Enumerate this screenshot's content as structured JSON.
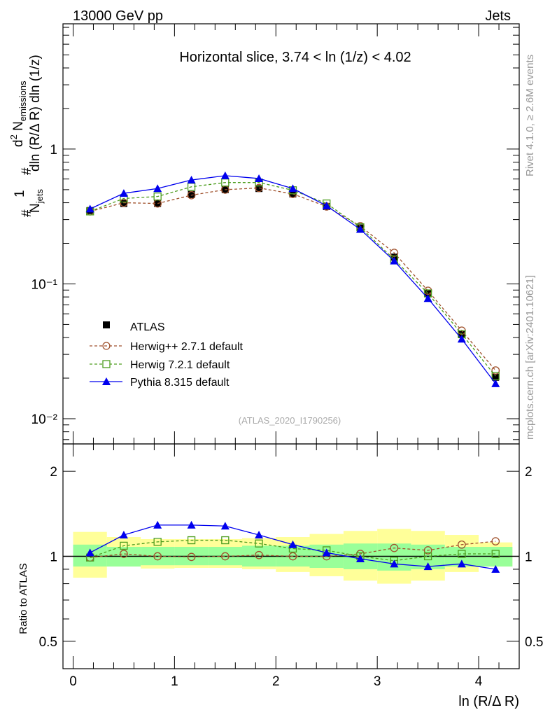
{
  "header": {
    "energy_label": "13000 GeV pp",
    "process_label": "Jets"
  },
  "side": {
    "rivet_label": "Rivet 4.1.0, ≥ 2.6M events",
    "mcplots_label": "mcplots.cern.ch [arXiv:2401.10621]"
  },
  "chart_data": [
    {
      "type": "line",
      "title": "Horizontal slice, 3.74 < ln (1/z) < 4.02",
      "watermark": "(ATLAS_2020_I1790256)",
      "ylabel": "1/N_jets dN_emissions / dln(R/ΔR) dln(1/z)",
      "xlabel": "ln (R/Δ R)",
      "yscale": "log",
      "xlim": [
        -0.1,
        4.4
      ],
      "ylim": [
        0.0065,
        8.5
      ],
      "y_tick_labels": [
        "10⁻²",
        "10⁻¹",
        "1"
      ],
      "legend_position": "middle-left",
      "x": [
        0.167,
        0.5,
        0.833,
        1.167,
        1.5,
        1.833,
        2.167,
        2.5,
        2.833,
        3.167,
        3.5,
        3.833,
        4.167
      ],
      "series": [
        {
          "name": "ATLAS",
          "values": [
            0.35,
            0.395,
            0.395,
            0.46,
            0.5,
            0.51,
            0.465,
            0.375,
            0.26,
            0.158,
            0.085,
            0.042,
            0.0203
          ]
        },
        {
          "name": "Herwig++ 2.7.1 default",
          "values": [
            0.345,
            0.4,
            0.395,
            0.455,
            0.5,
            0.515,
            0.465,
            0.375,
            0.268,
            0.17,
            0.089,
            0.045,
            0.0228
          ]
        },
        {
          "name": "Herwig 7.2.1 default",
          "values": [
            0.345,
            0.43,
            0.445,
            0.525,
            0.565,
            0.565,
            0.495,
            0.395,
            0.263,
            0.152,
            0.085,
            0.0425,
            0.0207
          ]
        },
        {
          "name": "Pythia 8.315 default",
          "values": [
            0.36,
            0.47,
            0.51,
            0.59,
            0.635,
            0.605,
            0.51,
            0.38,
            0.254,
            0.148,
            0.078,
            0.039,
            0.0182
          ]
        }
      ]
    },
    {
      "type": "line",
      "ylabel": "Ratio to ATLAS",
      "xlabel": "ln (R/Δ R)",
      "yscale": "log",
      "xlim": [
        -0.1,
        4.4
      ],
      "ylim": [
        0.4,
        2.5
      ],
      "y_ticks": [
        0.5,
        1,
        2
      ],
      "y_tick_labels": [
        "0.5",
        "1",
        "2"
      ],
      "x_ticks": [
        0,
        1,
        2,
        3,
        4
      ],
      "x_tick_labels": [
        "0",
        "1",
        "2",
        "3",
        "4"
      ],
      "bin_edges": [
        0,
        0.333,
        0.667,
        1.0,
        1.333,
        1.667,
        2.0,
        2.333,
        2.667,
        3.0,
        3.333,
        3.667,
        4.0,
        4.333
      ],
      "band_stat": {
        "low": [
          0.92,
          0.92,
          0.93,
          0.93,
          0.93,
          0.92,
          0.92,
          0.91,
          0.9,
          0.89,
          0.9,
          0.92,
          0.92
        ],
        "high": [
          1.1,
          1.08,
          1.08,
          1.08,
          1.08,
          1.09,
          1.09,
          1.1,
          1.11,
          1.11,
          1.1,
          1.08,
          1.08
        ]
      },
      "band_total": {
        "low": [
          0.84,
          0.92,
          0.905,
          0.91,
          0.91,
          0.9,
          0.88,
          0.85,
          0.82,
          0.8,
          0.82,
          0.88,
          0.92
        ],
        "high": [
          1.22,
          1.17,
          1.15,
          1.15,
          1.15,
          1.16,
          1.17,
          1.2,
          1.23,
          1.25,
          1.23,
          1.19,
          1.12
        ]
      },
      "x": [
        0.167,
        0.5,
        0.833,
        1.167,
        1.5,
        1.833,
        2.167,
        2.5,
        2.833,
        3.167,
        3.5,
        3.833,
        4.167
      ],
      "series": [
        {
          "name": "Herwig++ 2.7.1 default",
          "values": [
            0.99,
            1.02,
            1.0,
            0.995,
            1.0,
            1.01,
            1.0,
            1.0,
            1.02,
            1.07,
            1.05,
            1.1,
            1.13
          ]
        },
        {
          "name": "Herwig 7.2.1 default",
          "values": [
            0.99,
            1.09,
            1.125,
            1.14,
            1.14,
            1.11,
            1.065,
            1.05,
            1.0,
            0.965,
            1.0,
            1.02,
            1.02
          ]
        },
        {
          "name": "Pythia 8.315 default",
          "values": [
            1.03,
            1.19,
            1.29,
            1.29,
            1.28,
            1.19,
            1.1,
            1.03,
            0.98,
            0.94,
            0.92,
            0.94,
            0.9
          ]
        }
      ]
    }
  ]
}
